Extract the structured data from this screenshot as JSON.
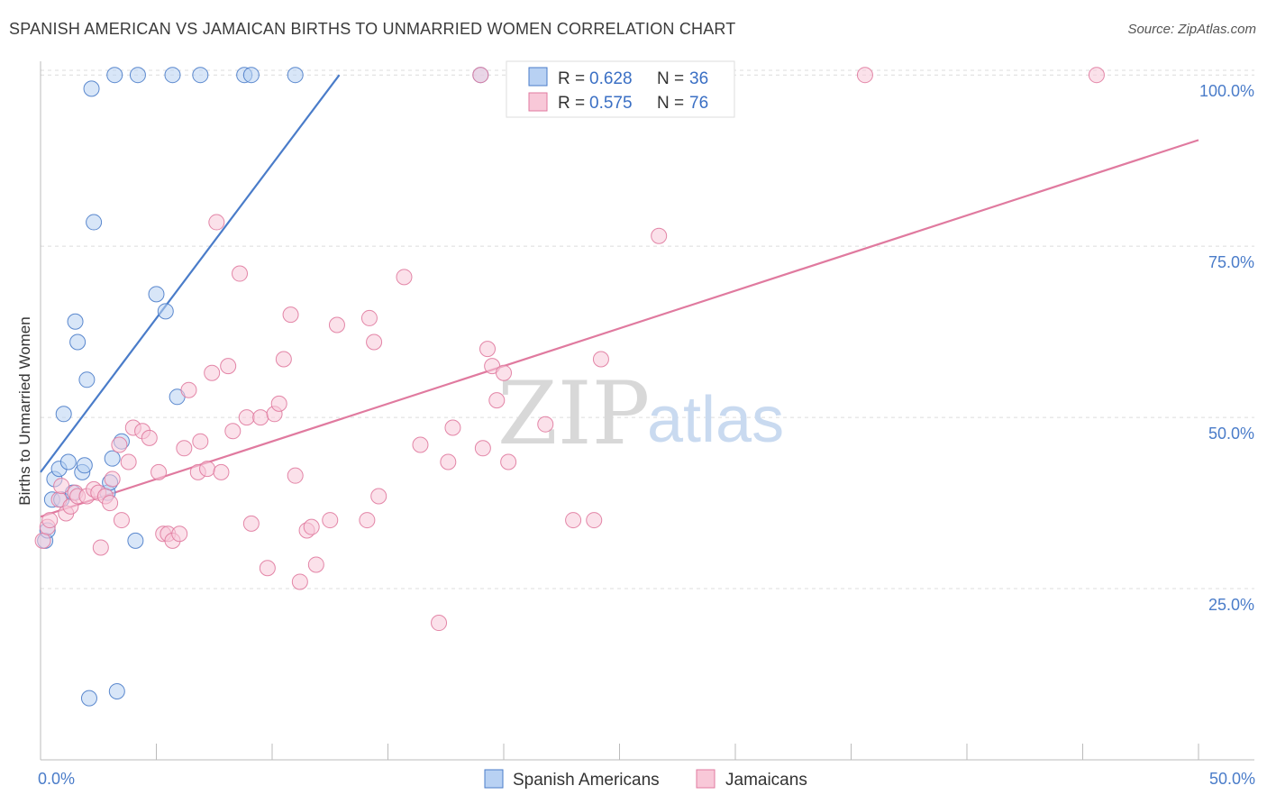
{
  "title": "SPANISH AMERICAN VS JAMAICAN BIRTHS TO UNMARRIED WOMEN CORRELATION CHART",
  "source": "Source: ZipAtlas.com",
  "watermark": {
    "zip": "ZIP",
    "atlas": "atlas"
  },
  "chart_data": {
    "type": "scatter",
    "title": "SPANISH AMERICAN VS JAMAICAN BIRTHS TO UNMARRIED WOMEN CORRELATION CHART",
    "ylabel": "Births to Unmarried Women",
    "xlabel": "",
    "xlim": [
      0,
      50
    ],
    "ylim": [
      0,
      102
    ],
    "x_ticks": [
      {
        "value": 0,
        "label": "0.0%"
      },
      {
        "value": 50,
        "label": "50.0%"
      }
    ],
    "y_ticks": [
      {
        "value": 25,
        "label": "25.0%"
      },
      {
        "value": 50,
        "label": "50.0%"
      },
      {
        "value": 75,
        "label": "75.0%"
      },
      {
        "value": 100,
        "label": "100.0%"
      }
    ],
    "grid": true,
    "legend_position": "top-center",
    "series": [
      {
        "name": "Spanish Americans",
        "color": "#4a7cc9",
        "fill": "#b8d1f3",
        "stats": {
          "r_label": "R =",
          "r_value": "0.628",
          "n_label": "N =",
          "n_value": "36"
        },
        "trend": {
          "x1": 0,
          "y1": 42,
          "x2": 12.9,
          "y2": 100
        },
        "points": [
          [
            0.2,
            32
          ],
          [
            0.3,
            33.5
          ],
          [
            0.5,
            38
          ],
          [
            0.6,
            41
          ],
          [
            0.8,
            42.5
          ],
          [
            0.9,
            38
          ],
          [
            1.0,
            50.5
          ],
          [
            1.2,
            43.5
          ],
          [
            1.4,
            39
          ],
          [
            1.5,
            64
          ],
          [
            1.6,
            61
          ],
          [
            1.8,
            42
          ],
          [
            1.9,
            43
          ],
          [
            2.0,
            55.5
          ],
          [
            2.1,
            9
          ],
          [
            2.2,
            98
          ],
          [
            2.3,
            78.5
          ],
          [
            2.9,
            39
          ],
          [
            3.0,
            40.5
          ],
          [
            3.1,
            44
          ],
          [
            3.2,
            100
          ],
          [
            3.3,
            10
          ],
          [
            3.5,
            46.5
          ],
          [
            4.1,
            32
          ],
          [
            4.2,
            100
          ],
          [
            5.0,
            68
          ],
          [
            5.4,
            65.5
          ],
          [
            5.7,
            100
          ],
          [
            5.9,
            53
          ],
          [
            6.9,
            100
          ],
          [
            8.8,
            100
          ],
          [
            9.1,
            100
          ],
          [
            11.0,
            100
          ],
          [
            19.0,
            100
          ]
        ]
      },
      {
        "name": "Jamaicans",
        "color": "#e07a9f",
        "fill": "#f8c8d8",
        "stats": {
          "r_label": "R =",
          "r_value": "0.575",
          "n_label": "N =",
          "n_value": "76"
        },
        "trend": {
          "x1": 0,
          "y1": 35.5,
          "x2": 50,
          "y2": 90.5
        },
        "points": [
          [
            0.1,
            32
          ],
          [
            0.3,
            34
          ],
          [
            0.4,
            35
          ],
          [
            0.8,
            38
          ],
          [
            0.9,
            40
          ],
          [
            1.1,
            36
          ],
          [
            1.3,
            37
          ],
          [
            1.5,
            39
          ],
          [
            1.6,
            38.5
          ],
          [
            2.0,
            38.5
          ],
          [
            2.3,
            39.5
          ],
          [
            2.5,
            39
          ],
          [
            2.6,
            31
          ],
          [
            2.8,
            38.5
          ],
          [
            3.0,
            37.5
          ],
          [
            3.1,
            41
          ],
          [
            3.4,
            46
          ],
          [
            3.5,
            35
          ],
          [
            3.8,
            43.5
          ],
          [
            4.0,
            48.5
          ],
          [
            4.4,
            48
          ],
          [
            4.7,
            47
          ],
          [
            5.1,
            42
          ],
          [
            5.3,
            33
          ],
          [
            5.5,
            33
          ],
          [
            5.7,
            32
          ],
          [
            6.0,
            33
          ],
          [
            6.2,
            45.5
          ],
          [
            6.4,
            54
          ],
          [
            6.8,
            42
          ],
          [
            6.9,
            46.5
          ],
          [
            7.2,
            42.5
          ],
          [
            7.4,
            56.5
          ],
          [
            7.6,
            78.5
          ],
          [
            7.8,
            42
          ],
          [
            8.1,
            57.5
          ],
          [
            8.3,
            48
          ],
          [
            8.6,
            71
          ],
          [
            8.9,
            50
          ],
          [
            9.1,
            34.5
          ],
          [
            9.5,
            50
          ],
          [
            9.8,
            28
          ],
          [
            10.1,
            50.5
          ],
          [
            10.3,
            52
          ],
          [
            10.5,
            58.5
          ],
          [
            10.8,
            65
          ],
          [
            11.0,
            41.5
          ],
          [
            11.2,
            26
          ],
          [
            11.5,
            33.5
          ],
          [
            11.7,
            34
          ],
          [
            11.9,
            28.5
          ],
          [
            12.5,
            35
          ],
          [
            12.8,
            63.5
          ],
          [
            14.1,
            35
          ],
          [
            14.2,
            64.5
          ],
          [
            14.4,
            61
          ],
          [
            14.6,
            38.5
          ],
          [
            15.7,
            70.5
          ],
          [
            16.4,
            46
          ],
          [
            17.2,
            20
          ],
          [
            17.6,
            43.5
          ],
          [
            17.8,
            48.5
          ],
          [
            19.0,
            100
          ],
          [
            19.1,
            45.5
          ],
          [
            19.3,
            60
          ],
          [
            19.5,
            57.5
          ],
          [
            19.7,
            52.5
          ],
          [
            20.0,
            56.5
          ],
          [
            20.2,
            43.5
          ],
          [
            21.8,
            49
          ],
          [
            23.0,
            35
          ],
          [
            23.9,
            35
          ],
          [
            24.2,
            58.5
          ],
          [
            26.7,
            76.5
          ],
          [
            35.6,
            100
          ],
          [
            45.6,
            100
          ]
        ]
      }
    ]
  }
}
